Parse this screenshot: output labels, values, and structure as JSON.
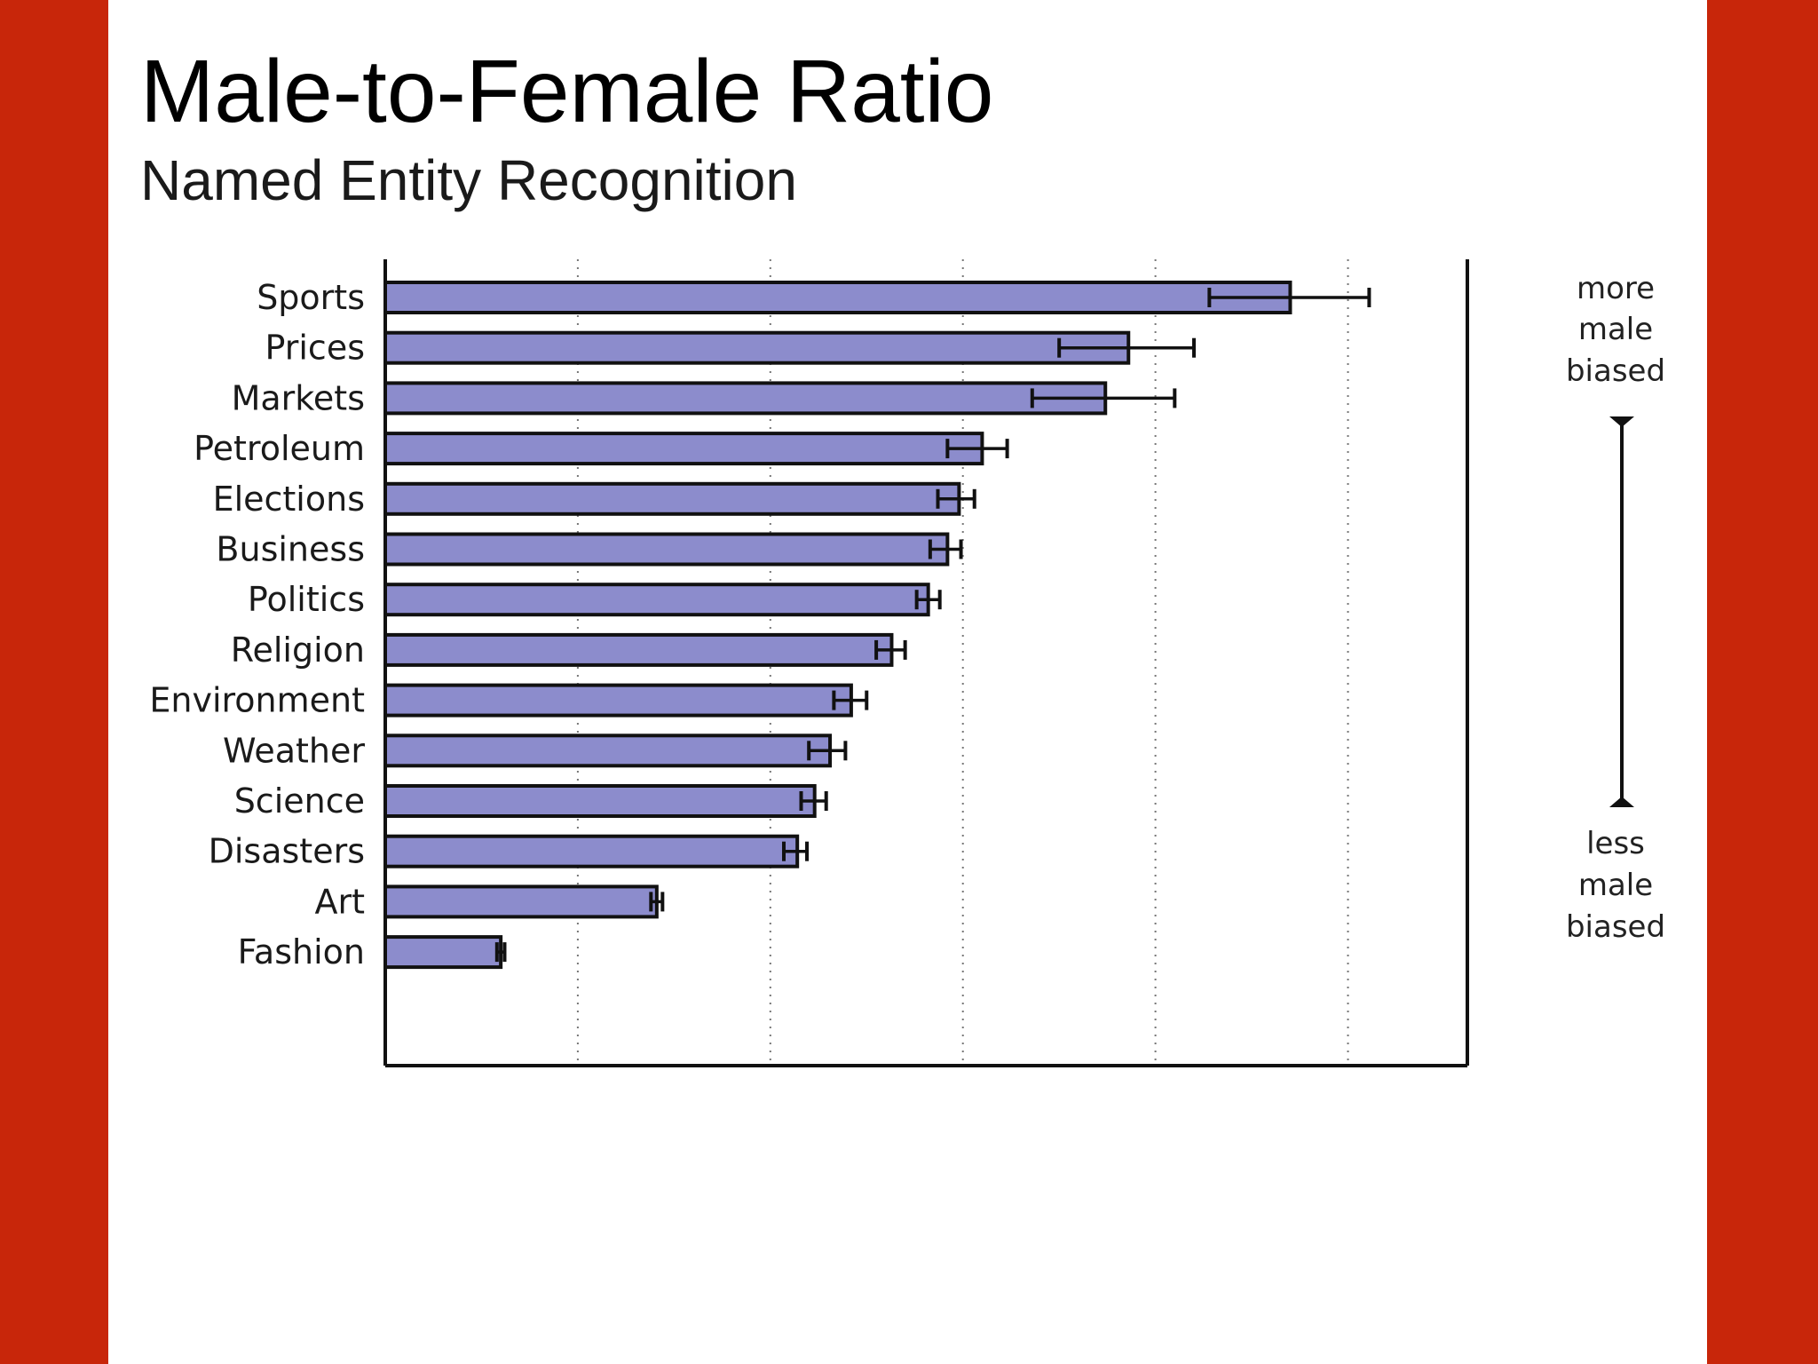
{
  "slide": {
    "title": "Male-to-Female Ratio",
    "subtitle": "Named Entity Recognition"
  },
  "colors": {
    "background": "#c8260a",
    "slide": "#ffffff",
    "bar_fill": "#8c8ccc",
    "bar_stroke": "#111111"
  },
  "chart_data": {
    "type": "bar",
    "orientation": "horizontal",
    "categories": [
      "Sports",
      "Prices",
      "Markets",
      "Petroleum",
      "Elections",
      "Business",
      "Politics",
      "Religion",
      "Environment",
      "Weather",
      "Science",
      "Disasters",
      "Art",
      "Fashion"
    ],
    "values": [
      4.7,
      3.86,
      3.74,
      3.1,
      2.98,
      2.92,
      2.82,
      2.63,
      2.42,
      2.31,
      2.23,
      2.14,
      1.41,
      0.6
    ],
    "error_low": [
      4.28,
      3.5,
      3.36,
      2.92,
      2.87,
      2.83,
      2.76,
      2.55,
      2.33,
      2.2,
      2.16,
      2.07,
      1.38,
      0.58
    ],
    "error_high": [
      5.11,
      4.2,
      4.1,
      3.23,
      3.06,
      2.99,
      2.88,
      2.7,
      2.5,
      2.39,
      2.29,
      2.19,
      1.44,
      0.62
    ],
    "xlim": [
      0,
      5.62
    ],
    "x_gridlines": [
      1,
      2,
      3,
      4,
      5
    ],
    "grid": "vertical dotted",
    "annotations": {
      "top": [
        "more",
        "male",
        "biased"
      ],
      "bottom": [
        "less",
        "male",
        "biased"
      ]
    }
  }
}
